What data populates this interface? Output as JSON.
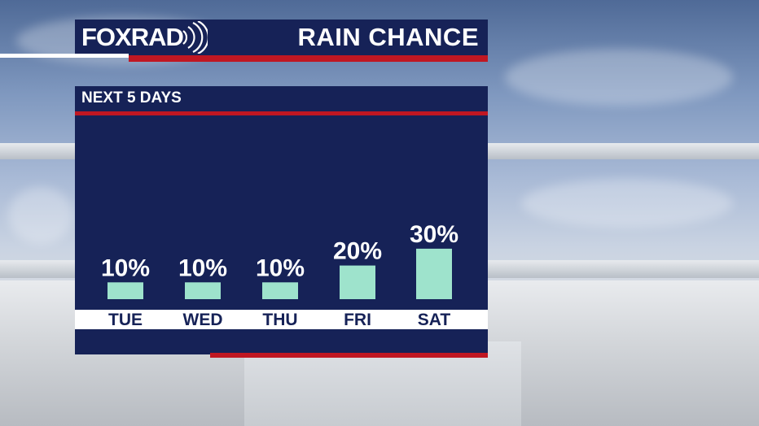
{
  "header": {
    "logo_fox": "FOX",
    "logo_rad": "RAD",
    "title": "RAIN CHANCE"
  },
  "panel": {
    "subtitle": "NEXT 5 DAYS"
  },
  "colors": {
    "navy": "#162257",
    "red": "#c01722",
    "bar": "#9ee3cc",
    "label_strip": "#ffffff"
  },
  "chart_data": {
    "type": "bar",
    "title": "RAIN CHANCE",
    "subtitle": "NEXT 5 DAYS",
    "categories": [
      "TUE",
      "WED",
      "THU",
      "FRI",
      "SAT"
    ],
    "values": [
      10,
      10,
      10,
      20,
      30
    ],
    "value_labels": [
      "10%",
      "10%",
      "10%",
      "20%",
      "30%"
    ],
    "unit": "%",
    "ylim": [
      0,
      100
    ],
    "grid": false,
    "legend": "none"
  }
}
